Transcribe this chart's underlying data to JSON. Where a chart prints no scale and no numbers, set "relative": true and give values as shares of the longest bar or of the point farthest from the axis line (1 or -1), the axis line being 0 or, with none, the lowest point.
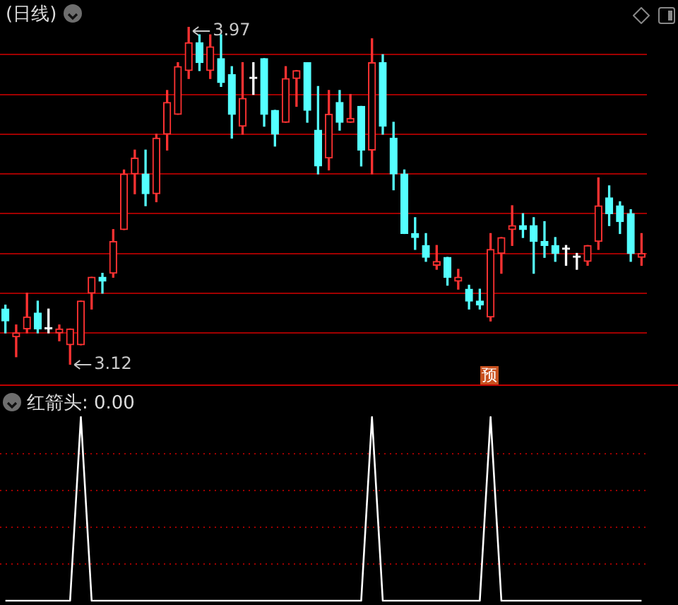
{
  "chart_data": [
    {
      "type": "candlestick",
      "title": "(日线)",
      "categories": [
        null,
        null,
        null,
        null,
        null,
        null,
        null,
        null,
        null,
        null,
        null,
        null,
        null,
        null,
        null,
        null,
        null,
        null,
        null,
        null,
        null,
        null,
        null,
        null,
        null,
        null,
        null,
        null,
        null,
        null,
        null,
        null,
        null,
        null,
        null,
        null,
        null,
        null,
        null,
        null,
        null,
        null,
        null,
        null,
        null,
        null,
        null,
        null,
        null,
        null,
        null,
        null,
        null,
        null,
        null,
        null,
        null,
        null,
        null,
        null
      ],
      "ohlc": [
        [
          3.26,
          3.27,
          3.2,
          3.23
        ],
        [
          3.19,
          3.22,
          3.14,
          3.2
        ],
        [
          3.21,
          3.3,
          3.2,
          3.24
        ],
        [
          3.25,
          3.28,
          3.2,
          3.21
        ],
        [
          3.21,
          3.26,
          3.2,
          3.21
        ],
        [
          3.2,
          3.22,
          3.18,
          3.21
        ],
        [
          3.17,
          3.21,
          3.12,
          3.21
        ],
        [
          3.17,
          3.28,
          3.17,
          3.28
        ],
        [
          3.3,
          3.34,
          3.26,
          3.34
        ],
        [
          3.34,
          3.35,
          3.3,
          3.33
        ],
        [
          3.35,
          3.46,
          3.34,
          3.43
        ],
        [
          3.46,
          3.61,
          3.46,
          3.6
        ],
        [
          3.6,
          3.66,
          3.55,
          3.64
        ],
        [
          3.6,
          3.66,
          3.52,
          3.55
        ],
        [
          3.55,
          3.7,
          3.53,
          3.69
        ],
        [
          3.7,
          3.81,
          3.66,
          3.78
        ],
        [
          3.75,
          3.88,
          3.75,
          3.87
        ],
        [
          3.86,
          3.97,
          3.84,
          3.93
        ],
        [
          3.93,
          3.95,
          3.86,
          3.88
        ],
        [
          3.86,
          3.95,
          3.84,
          3.92
        ],
        [
          3.89,
          3.95,
          3.82,
          3.83
        ],
        [
          3.85,
          3.87,
          3.69,
          3.75
        ],
        [
          3.72,
          3.88,
          3.7,
          3.79
        ],
        [
          3.84,
          3.88,
          3.8,
          3.84
        ],
        [
          3.89,
          3.89,
          3.72,
          3.75
        ],
        [
          3.76,
          3.76,
          3.67,
          3.7
        ],
        [
          3.73,
          3.87,
          3.73,
          3.84
        ],
        [
          3.84,
          3.86,
          3.77,
          3.86
        ],
        [
          3.88,
          3.88,
          3.73,
          3.76
        ],
        [
          3.71,
          3.82,
          3.6,
          3.62
        ],
        [
          3.64,
          3.81,
          3.61,
          3.75
        ],
        [
          3.78,
          3.81,
          3.71,
          3.73
        ],
        [
          3.73,
          3.8,
          3.73,
          3.74
        ],
        [
          3.77,
          3.77,
          3.62,
          3.66
        ],
        [
          3.66,
          3.94,
          3.6,
          3.88
        ],
        [
          3.88,
          3.9,
          3.7,
          3.72
        ],
        [
          3.69,
          3.73,
          3.56,
          3.6
        ],
        [
          3.6,
          3.61,
          3.45,
          3.45
        ],
        [
          3.45,
          3.49,
          3.41,
          3.44
        ],
        [
          3.42,
          3.45,
          3.38,
          3.39
        ],
        [
          3.37,
          3.42,
          3.36,
          3.38
        ],
        [
          3.39,
          3.39,
          3.32,
          3.34
        ],
        [
          3.33,
          3.36,
          3.31,
          3.34
        ],
        [
          3.31,
          3.32,
          3.26,
          3.28
        ],
        [
          3.28,
          3.31,
          3.26,
          3.27
        ],
        [
          3.24,
          3.45,
          3.23,
          3.41
        ],
        [
          3.4,
          3.44,
          3.35,
          3.44
        ],
        [
          3.46,
          3.52,
          3.42,
          3.47
        ],
        [
          3.47,
          3.5,
          3.44,
          3.46
        ],
        [
          3.47,
          3.49,
          3.35,
          3.43
        ],
        [
          3.43,
          3.48,
          3.39,
          3.42
        ],
        [
          3.42,
          3.44,
          3.38,
          3.4
        ],
        [
          3.41,
          3.42,
          3.37,
          3.41
        ],
        [
          3.39,
          3.4,
          3.36,
          3.39
        ],
        [
          3.38,
          3.42,
          3.37,
          3.42
        ],
        [
          3.43,
          3.59,
          3.41,
          3.52
        ],
        [
          3.54,
          3.57,
          3.47,
          3.5
        ],
        [
          3.52,
          3.53,
          3.45,
          3.48
        ],
        [
          3.5,
          3.51,
          3.38,
          3.4
        ],
        [
          3.39,
          3.45,
          3.37,
          3.4
        ]
      ],
      "colors": [
        "#54ffff",
        "#ff3232",
        "#ff3232",
        "#54ffff",
        "#ffffff",
        "#ff3232",
        "#ff3232",
        "#ff3232",
        "#ff3232",
        "#54ffff",
        "#ff3232",
        "#ff3232",
        "#ff3232",
        "#54ffff",
        "#ff3232",
        "#ff3232",
        "#ff3232",
        "#ff3232",
        "#54ffff",
        "#ff3232",
        "#54ffff",
        "#54ffff",
        "#ff3232",
        "#ffffff",
        "#54ffff",
        "#54ffff",
        "#ff3232",
        "#ff3232",
        "#54ffff",
        "#54ffff",
        "#ff3232",
        "#54ffff",
        "#ff3232",
        "#54ffff",
        "#ff3232",
        "#54ffff",
        "#54ffff",
        "#54ffff",
        "#54ffff",
        "#54ffff",
        "#ff3232",
        "#54ffff",
        "#ff3232",
        "#54ffff",
        "#54ffff",
        "#ff3232",
        "#ff3232",
        "#ff3232",
        "#54ffff",
        "#54ffff",
        "#54ffff",
        "#54ffff",
        "#ffffff",
        "#ffffff",
        "#ff3232",
        "#ff3232",
        "#54ffff",
        "#54ffff",
        "#54ffff",
        "#ff3232"
      ],
      "yticks": [
        {
          "value": 3.2,
          "label": null
        },
        {
          "value": 3.3,
          "label": null
        },
        {
          "value": 3.4,
          "label": null
        },
        {
          "value": 3.5,
          "label": null
        },
        {
          "value": 3.6,
          "label": null
        },
        {
          "value": 3.7,
          "label": null
        },
        {
          "value": 3.8,
          "label": null
        },
        {
          "value": 3.9,
          "label": null
        }
      ],
      "grid": "y",
      "tick_labels": false,
      "annotations": [
        "3.97",
        "3.12",
        "预"
      ]
    },
    {
      "type": "line",
      "title": "红箭头: 0.00",
      "categories": [
        null,
        null,
        null,
        null,
        null,
        null,
        null,
        null,
        null,
        null,
        null,
        null,
        null,
        null,
        null,
        null,
        null,
        null,
        null,
        null,
        null,
        null,
        null,
        null,
        null,
        null,
        null,
        null,
        null,
        null,
        null,
        null,
        null,
        null,
        null,
        null,
        null,
        null,
        null,
        null,
        null,
        null,
        null,
        null,
        null,
        null,
        null,
        null,
        null,
        null,
        null,
        null,
        null,
        null,
        null,
        null,
        null,
        null,
        null,
        null
      ],
      "values": [
        0,
        0,
        0,
        0,
        0,
        0,
        0,
        1,
        0,
        0,
        0,
        0,
        0,
        0,
        0,
        0,
        0,
        0,
        0,
        0,
        0,
        0,
        0,
        0,
        0,
        0,
        0,
        0,
        0,
        0,
        0,
        0,
        0,
        0,
        1,
        0,
        0,
        0,
        0,
        0,
        0,
        0,
        0,
        0,
        0,
        1,
        0,
        0,
        0,
        0,
        0,
        0,
        0,
        0,
        0,
        0,
        0,
        0,
        0,
        0
      ],
      "color": "#ffffff",
      "relative": true,
      "tick_labels": false,
      "ref_lines": [
        {
          "axis": "y",
          "value": 0.2,
          "color": "#a00000",
          "line_style": "dotted"
        },
        {
          "axis": "y",
          "value": 0.4,
          "color": "#a00000",
          "line_style": "dotted"
        },
        {
          "axis": "y",
          "value": 0.6,
          "color": "#a00000",
          "line_style": "dotted"
        },
        {
          "axis": "y",
          "value": 0.8,
          "color": "#a00000",
          "line_style": "dotted"
        }
      ]
    }
  ]
}
